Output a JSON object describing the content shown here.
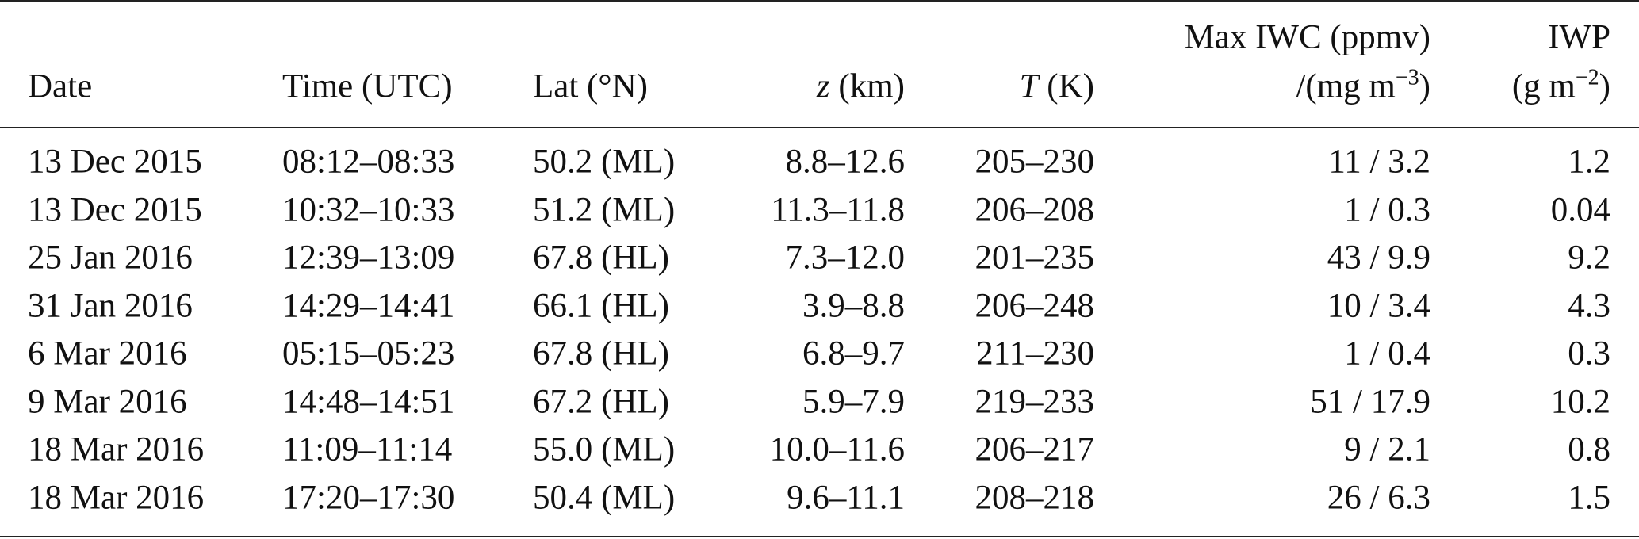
{
  "table": {
    "header": [
      [
        "Date"
      ],
      [
        "Time (UTC)"
      ],
      [
        "Lat (°N)"
      ],
      [
        "z",
        " (km)"
      ],
      [
        "T",
        " (K)"
      ],
      [
        "Max IWC (ppmv)",
        "/(mg m",
        "−3",
        ")"
      ],
      [
        "IWP",
        "(g m",
        "−2",
        ")"
      ]
    ],
    "rows": [
      [
        "13 Dec 2015",
        "08:12–08:33",
        "50.2 (ML)",
        "8.8–12.6",
        "205–230",
        "11 / 3.2",
        "1.2"
      ],
      [
        "13 Dec 2015",
        "10:32–10:33",
        "51.2 (ML)",
        "11.3–11.8",
        "206–208",
        "1 / 0.3",
        "0.04"
      ],
      [
        "25 Jan 2016",
        "12:39–13:09",
        "67.8 (HL)",
        "7.3–12.0",
        "201–235",
        "43 / 9.9",
        "9.2"
      ],
      [
        "31 Jan 2016",
        "14:29–14:41",
        "66.1 (HL)",
        "3.9–8.8",
        "206–248",
        "10 / 3.4",
        "4.3"
      ],
      [
        "6 Mar 2016",
        "05:15–05:23",
        "67.8 (HL)",
        "6.8–9.7",
        "211–230",
        "1 / 0.4",
        "0.3"
      ],
      [
        "9 Mar 2016",
        "14:48–14:51",
        "67.2 (HL)",
        "5.9–7.9",
        "219–233",
        "51 / 17.9",
        "10.2"
      ],
      [
        "18 Mar 2016",
        "11:09–11:14",
        "55.0 (ML)",
        "10.0–11.6",
        "206–217",
        "9 / 2.1",
        "0.8"
      ],
      [
        "18 Mar 2016",
        "17:20–17:30",
        "50.4 (ML)",
        "9.6–11.1",
        "208–218",
        "26 / 6.3",
        "1.5"
      ]
    ]
  }
}
